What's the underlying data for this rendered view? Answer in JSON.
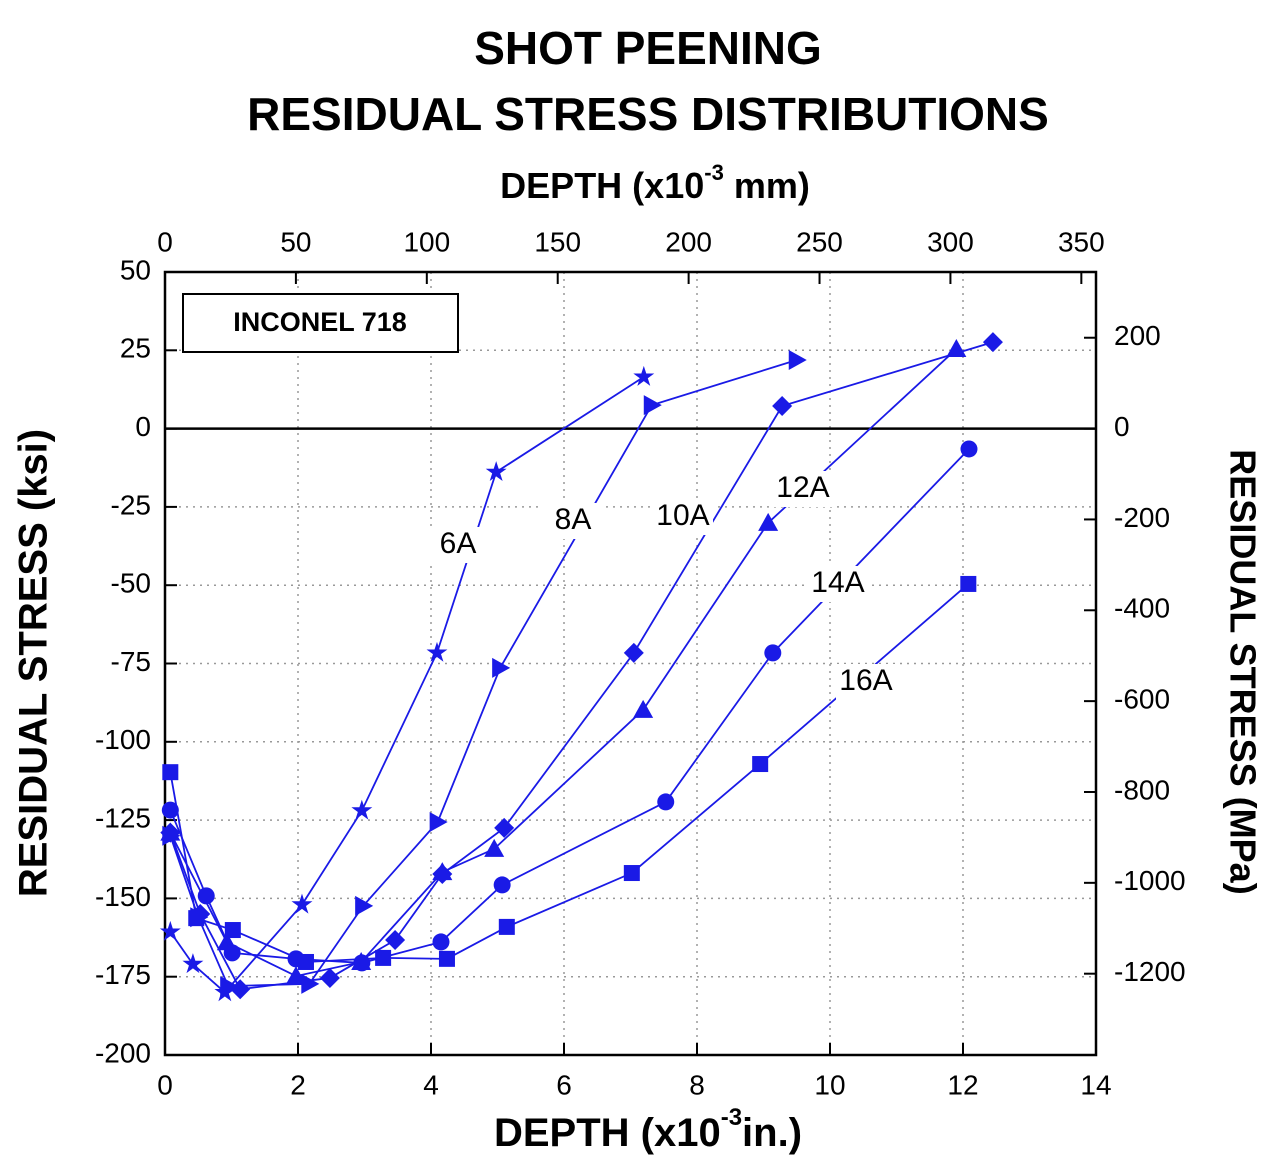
{
  "chart_data": {
    "type": "line",
    "title": [
      "SHOT PEENING",
      "RESIDUAL STRESS DISTRIBUTIONS"
    ],
    "xlabel": [
      "DEPTH (x10",
      "-3",
      "in.)"
    ],
    "x2label": [
      "DEPTH (x10",
      "-3",
      " mm)"
    ],
    "ylabel": "RESIDUAL STRESS (ksi)",
    "y2label": "RESIDUAL STRESS (MPa)",
    "legend_box": "INCONEL 718",
    "xlim": [
      0,
      14
    ],
    "xticks": [
      0,
      2,
      4,
      6,
      8,
      10,
      12,
      14
    ],
    "ylim": [
      -200,
      50
    ],
    "yticks": [
      50,
      25,
      0,
      -25,
      -50,
      -75,
      -100,
      -125,
      -150,
      -175,
      -200
    ],
    "x2lim": [
      0,
      355.6
    ],
    "x2ticks": [
      0,
      50,
      100,
      150,
      200,
      250,
      300,
      350
    ],
    "y2lim": [
      -1379,
      344.7
    ],
    "y2ticks": [
      200,
      0,
      -200,
      -400,
      -600,
      -800,
      -1000,
      -1200
    ],
    "grid": true,
    "zero_line": true,
    "series": [
      {
        "name": "6A",
        "marker": "star",
        "color": "#1a1ae6",
        "x": [
          0.08,
          0.42,
          0.9,
          2.06,
          2.96,
          4.09,
          4.98,
          7.2
        ],
        "values": [
          -160.7,
          -171,
          -180,
          -152,
          -122,
          -71.6,
          -13.9,
          16.5
        ]
      },
      {
        "name": "8A",
        "marker": "triangle-right",
        "color": "#1a1ae6",
        "x": [
          0.08,
          0.5,
          0.95,
          2.17,
          2.98,
          4.1,
          5.04,
          7.32,
          9.5
        ],
        "values": [
          -130,
          -156,
          -178,
          -177.3,
          -152.4,
          -125.6,
          -76.4,
          7.5,
          21.9
        ]
      },
      {
        "name": "10A",
        "marker": "diamond",
        "color": "#1a1ae6",
        "x": [
          0.08,
          0.53,
          1.13,
          2.48,
          3.46,
          4.17,
          5.1,
          7.05,
          9.28,
          12.45
        ],
        "values": [
          -129,
          -155,
          -179,
          -175.4,
          -163.3,
          -142.2,
          -127.5,
          -71.6,
          7.2,
          27.6
        ]
      },
      {
        "name": "12A",
        "marker": "triangle-up",
        "color": "#1a1ae6",
        "x": [
          0.08,
          0.93,
          1.97,
          2.95,
          4.17,
          4.95,
          7.19,
          9.07,
          11.9
        ],
        "values": [
          -129,
          -164,
          -174.8,
          -170.3,
          -141.6,
          -134.2,
          -89.8,
          -30.1,
          25.4
        ]
      },
      {
        "name": "14A",
        "marker": "circle",
        "color": "#1a1ae6",
        "x": [
          0.08,
          0.62,
          1.01,
          1.97,
          2.96,
          4.15,
          5.07,
          7.53,
          9.14,
          12.09
        ],
        "values": [
          -121.8,
          -149.2,
          -167.4,
          -169.3,
          -170.6,
          -163.9,
          -145.7,
          -119.2,
          -71.6,
          -6.5
        ]
      },
      {
        "name": "16A",
        "marker": "square",
        "color": "#1a1ae6",
        "x": [
          0.08,
          0.47,
          1.02,
          2.12,
          3.28,
          4.24,
          5.14,
          7.02,
          8.95,
          12.08
        ],
        "values": [
          -109.7,
          -156.3,
          -160.1,
          -170.3,
          -169,
          -169.3,
          -159.1,
          -141.9,
          -107.1,
          -49.6
        ]
      }
    ]
  }
}
